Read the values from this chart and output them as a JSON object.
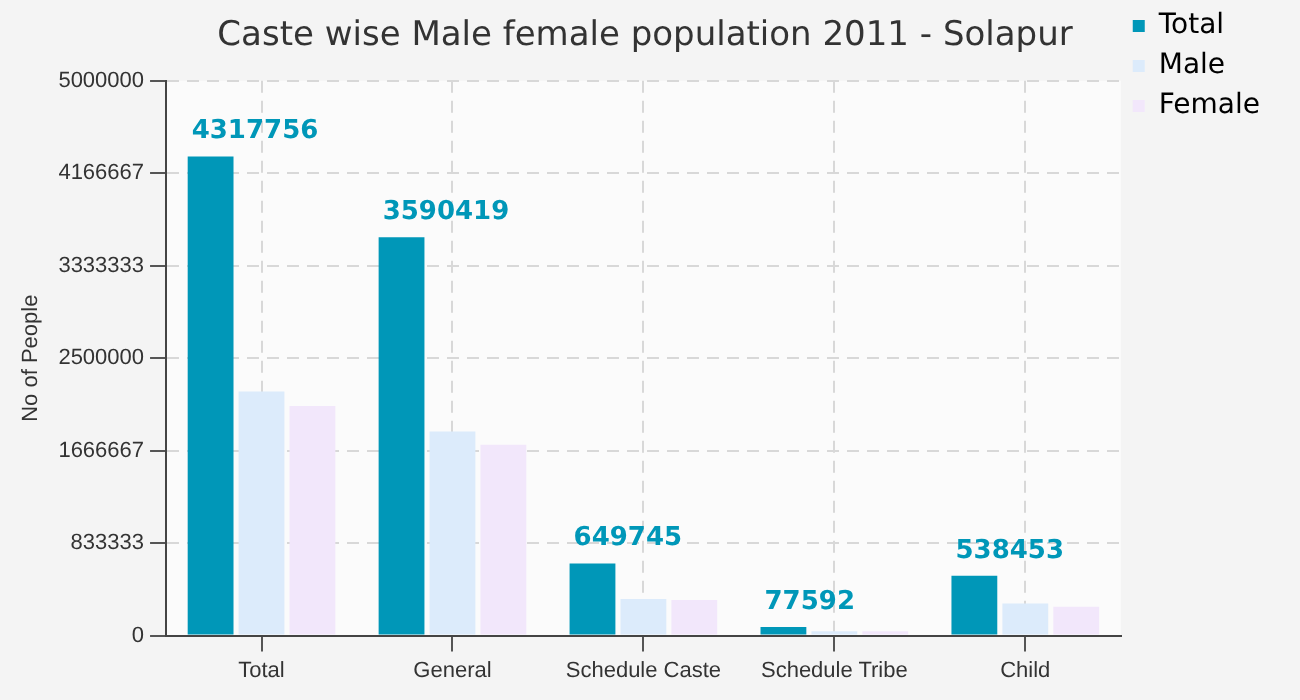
{
  "chart_data": {
    "type": "bar",
    "title": "Caste wise Male female population 2011 - Solapur",
    "ylabel": "No of People",
    "categories": [
      "Total",
      "General",
      "Schedule Caste",
      "Schedule Tribe",
      "Child"
    ],
    "series": [
      {
        "name": "Total",
        "color": "#0097b8",
        "values": [
          4317756,
          3590419,
          649745,
          77592,
          538453
        ],
        "value_labels": [
          "4317756",
          "3590419",
          "649745",
          "77592",
          "538453"
        ]
      },
      {
        "name": "Male",
        "color": "#dcebfb",
        "values": [
          2200000,
          1840000,
          330000,
          40000,
          290000
        ]
      },
      {
        "name": "Female",
        "color": "#f2e7fb",
        "values": [
          2070000,
          1720000,
          320000,
          40000,
          260000
        ]
      }
    ],
    "ylim": [
      0,
      5000000
    ],
    "yticks": [
      0,
      833333,
      1666667,
      2500000,
      3333333,
      4166667,
      5000000
    ],
    "grid": true,
    "legend": "top right"
  }
}
